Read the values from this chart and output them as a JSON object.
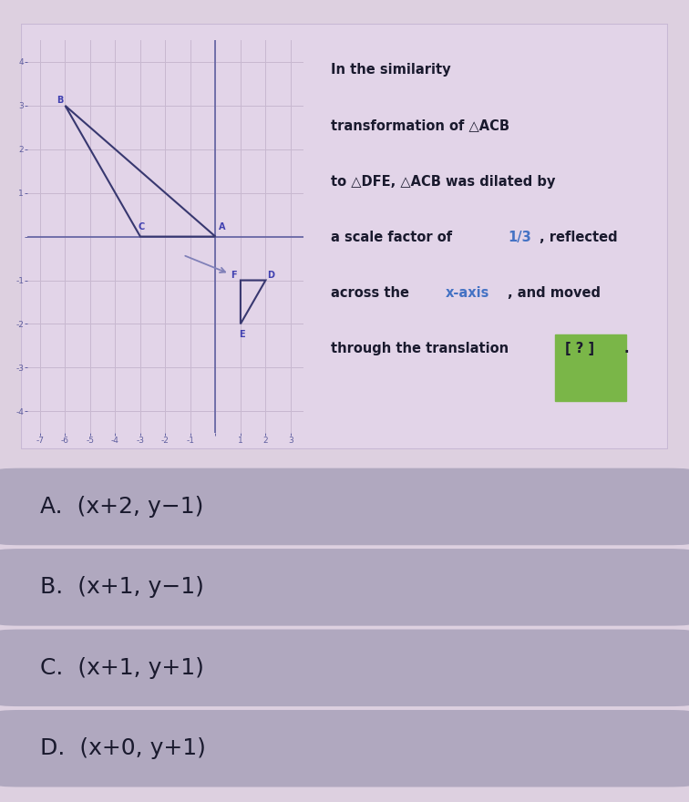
{
  "bg_color": "#ddd0e0",
  "graph_bg": "#e8daea",
  "grid_color": "#c8b8d0",
  "axis_color": "#6060a0",
  "triangle_ACB": {
    "A": [
      0,
      0
    ],
    "C": [
      -3,
      0
    ],
    "B": [
      -6,
      3
    ],
    "color": "#383870",
    "label_color": "#4040b0"
  },
  "triangle_DFE": {
    "D": [
      2,
      -1
    ],
    "F": [
      1,
      -1
    ],
    "E": [
      1,
      -2
    ],
    "color": "#383870",
    "label_color": "#4040b0"
  },
  "arrow_color": "#8080b8",
  "xlim": [
    -7.5,
    3.5
  ],
  "ylim": [
    -4.5,
    4.5
  ],
  "xticks": [
    -7,
    -6,
    -5,
    -4,
    -3,
    -2,
    -1,
    0,
    1,
    2,
    3
  ],
  "yticks": [
    -4,
    -3,
    -2,
    -1,
    0,
    1,
    2,
    3,
    4
  ],
  "highlight_blue": "#4472c4",
  "highlight_green": "#7ab648",
  "text_color": "#1a1a2e",
  "choices": [
    "A.  (x+2, y−1)",
    "B.  (x+1, y−1)",
    "C.  (x+1, y+1)",
    "D.  (x+0, y+1)"
  ],
  "choice_bg": "#b0a8bf",
  "choice_text_color": "#1a1a2e",
  "choice_fontsize": 18,
  "top_box_color": "#e2d4e8",
  "top_box_border": "#c8b8d4"
}
